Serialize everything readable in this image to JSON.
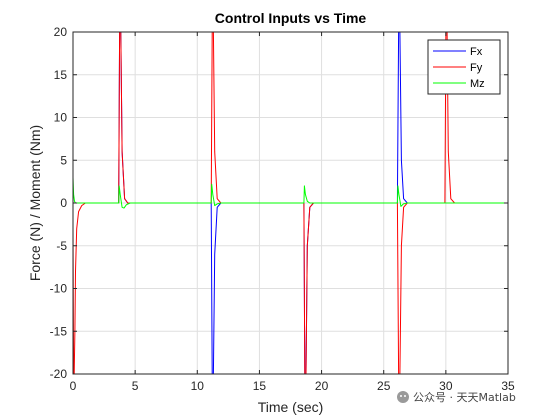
{
  "chart_data": {
    "type": "line",
    "title": "Control Inputs vs Time",
    "xlabel": "Time (sec)",
    "ylabel": "Force (N) / Moment (Nm)",
    "xlim": [
      0,
      35
    ],
    "ylim": [
      -20,
      20
    ],
    "xticks": [
      0,
      5,
      10,
      15,
      20,
      25,
      30,
      35
    ],
    "yticks": [
      -20,
      -15,
      -10,
      -5,
      0,
      5,
      10,
      15,
      20
    ],
    "grid": true,
    "legend_position": "top-right",
    "series": [
      {
        "name": "Fx",
        "color": "#0000ff",
        "x": [
          0,
          3.68,
          3.75,
          3.85,
          3.95,
          4.15,
          4.4,
          11.12,
          11.2,
          11.3,
          11.4,
          11.6,
          11.9,
          18.58,
          18.65,
          18.75,
          18.85,
          19.05,
          19.35,
          26.1,
          26.2,
          26.3,
          26.42,
          26.6,
          26.9,
          35
        ],
        "y": [
          0,
          0,
          20,
          20,
          6,
          0.5,
          0,
          0,
          -20,
          -20,
          -6,
          -0.5,
          0,
          0,
          -20,
          -20,
          -5,
          -0.5,
          0,
          0,
          20,
          20,
          5,
          0.5,
          0,
          0
        ]
      },
      {
        "name": "Fy",
        "color": "#ff0000",
        "x": [
          0,
          0.05,
          0.1,
          0.15,
          0.2,
          0.3,
          0.45,
          0.7,
          1.0,
          3.68,
          3.75,
          3.85,
          3.95,
          4.15,
          4.4,
          11.12,
          11.2,
          11.3,
          11.4,
          11.6,
          11.9,
          18.58,
          18.65,
          18.75,
          18.85,
          19.05,
          19.35,
          26.1,
          26.2,
          26.3,
          26.42,
          26.6,
          26.9,
          29.92,
          30.0,
          30.1,
          30.2,
          30.4,
          30.7,
          35
        ],
        "y": [
          -3,
          -20,
          -20,
          -15,
          -8,
          -3,
          -1,
          -0.3,
          0,
          0,
          20,
          20,
          6,
          0.5,
          0,
          0,
          20,
          20,
          6,
          0.5,
          0,
          0,
          -20,
          -20,
          -5,
          -0.5,
          0,
          0,
          -20,
          -20,
          -5,
          -0.5,
          0,
          0,
          20,
          20,
          6,
          0.5,
          0,
          0
        ]
      },
      {
        "name": "Mz",
        "color": "#00ff00",
        "x": [
          0,
          0.05,
          0.12,
          0.2,
          0.4,
          3.68,
          3.72,
          3.8,
          3.95,
          4.1,
          4.3,
          4.6,
          11.12,
          11.16,
          11.25,
          11.4,
          11.6,
          11.9,
          18.58,
          18.62,
          18.7,
          18.85,
          19.05,
          19.35,
          26.1,
          26.14,
          26.22,
          26.38,
          26.58,
          26.9,
          35
        ],
        "y": [
          3,
          1,
          0.2,
          0,
          0,
          0,
          2,
          1,
          -0.5,
          -0.6,
          -0.2,
          0,
          0,
          2.2,
          1,
          -0.3,
          -0.1,
          0,
          0,
          2,
          1,
          0.2,
          0,
          0,
          0,
          2,
          1,
          -0.4,
          -0.1,
          0,
          0
        ]
      }
    ]
  },
  "watermark": {
    "text": "公众号 · 天天Matlab"
  }
}
